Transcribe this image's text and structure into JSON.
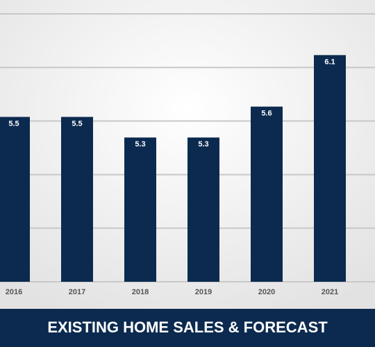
{
  "chart_data": {
    "type": "bar",
    "title": "EXISTING HOME SALES & FORECAST",
    "categories": [
      "2016",
      "2017",
      "2018",
      "2019",
      "2020",
      "2021"
    ],
    "values": [
      5.5,
      5.5,
      5.3,
      5.3,
      5.6,
      6.1
    ],
    "color": "#0c2a4f",
    "ylim": [
      3.9,
      6.5
    ],
    "grid": true
  }
}
